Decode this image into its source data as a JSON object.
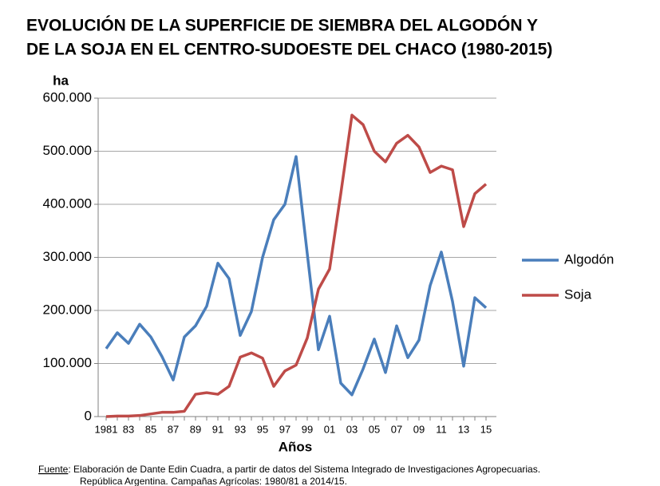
{
  "chart_data": {
    "type": "line",
    "title": [
      "EVOLUCIÓN DE LA SUPERFICIE DE SIEMBRA DEL  ALGODÓN Y",
      "DE LA SOJA EN EL CENTRO-SUDOESTE DEL CHACO (1980-2015)"
    ],
    "y_label": "ha",
    "x_label": "Años",
    "categories": [
      "1981",
      null,
      "83",
      null,
      "85",
      null,
      "87",
      null,
      "89",
      null,
      "91",
      null,
      "93",
      null,
      "95",
      null,
      "97",
      null,
      "99",
      null,
      "01",
      null,
      "03",
      null,
      "05",
      null,
      "07",
      null,
      "09",
      null,
      "11",
      null,
      "13",
      null,
      "15"
    ],
    "series": [
      {
        "name": "Algodón",
        "color": "#4a7ebb",
        "values": [
          128000,
          158000,
          138000,
          174000,
          150000,
          113000,
          69000,
          150000,
          171000,
          208000,
          289000,
          260000,
          153000,
          198000,
          300000,
          371000,
          400000,
          490000,
          307000,
          126000,
          189000,
          63000,
          41000,
          90000,
          146000,
          83000,
          171000,
          111000,
          144000,
          247000,
          310000,
          217000,
          95000,
          224000,
          205000
        ]
      },
      {
        "name": "Soja",
        "color": "#be4b48",
        "values": [
          0,
          1000,
          1000,
          2000,
          5000,
          8000,
          8000,
          10000,
          42000,
          45000,
          42000,
          57000,
          112000,
          120000,
          110000,
          57000,
          86000,
          97000,
          148000,
          240000,
          278000,
          420000,
          568000,
          550000,
          500000,
          480000,
          515000,
          530000,
          508000,
          460000,
          472000,
          465000,
          358000,
          420000,
          438000
        ]
      }
    ],
    "ylim": [
      0,
      600000
    ],
    "yticks": [
      0,
      {
        "value": 100000,
        "label": "100.000"
      },
      {
        "value": 200000,
        "label": "200.000"
      },
      {
        "value": 300000,
        "label": "300.000"
      },
      {
        "value": 400000,
        "label": "400.000"
      },
      {
        "value": 500000,
        "label": "500.000"
      },
      {
        "value": 600000,
        "label": "600.000"
      }
    ],
    "grid": true,
    "legend": "right",
    "source": [
      "Fuente",
      ": Elaboración de Dante Edin Cuadra, a partir de datos del Sistema Integrado de Investigaciones Agropecuarias.",
      "República Argentina. Campañas Agrícolas: 1980/81 a 2014/15."
    ]
  }
}
